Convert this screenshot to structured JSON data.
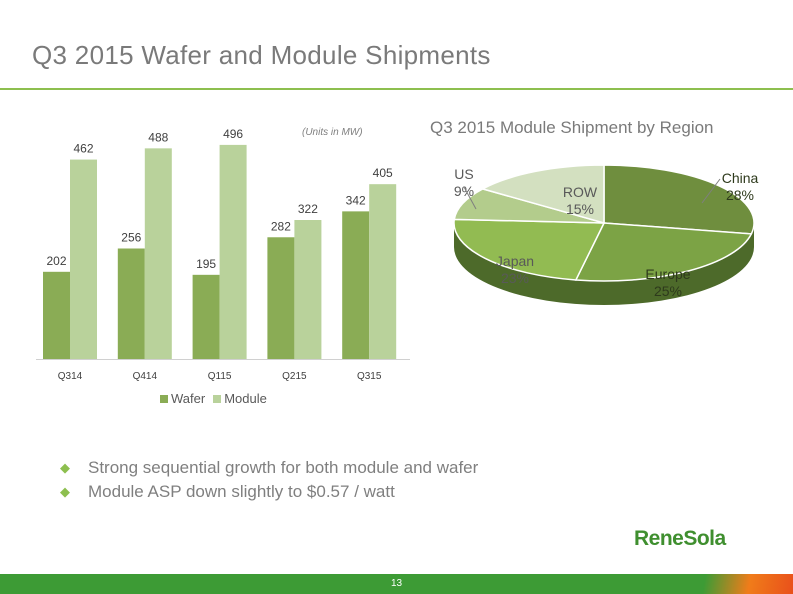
{
  "slide": {
    "title": "Q3 2015 Wafer and Module Shipments",
    "units_note": "(Units in MW)",
    "pie_title": "Q3 2015 Module Shipment by Region",
    "bullets": [
      "Strong sequential growth for both module and wafer",
      "Module ASP down slightly to $0.57 / watt"
    ],
    "bullet_symbol": "◆",
    "logo_text": "ReneSola",
    "page_number": "13"
  },
  "colors": {
    "wafer": "#8aac55",
    "module": "#b9d29b",
    "accent": "#8dbf4f",
    "footer_green": "#3d9b35"
  },
  "chart_data": [
    {
      "type": "bar",
      "categories": [
        "Q314",
        "Q414",
        "Q115",
        "Q215",
        "Q315"
      ],
      "series": [
        {
          "name": "Wafer",
          "values": [
            202,
            256,
            195,
            282,
            342
          ]
        },
        {
          "name": "Module",
          "values": [
            462,
            488,
            496,
            322,
            405
          ]
        }
      ],
      "title": "",
      "xlabel": "",
      "ylabel": "",
      "ylim": [
        0,
        600
      ],
      "grid": false,
      "legend": "bottom"
    },
    {
      "type": "pie",
      "title": "Q3 2015 Module Shipment by Region",
      "slices": [
        {
          "label": "China",
          "value": 28,
          "display": "28%",
          "color": "#6f8e3e"
        },
        {
          "label": "Europe",
          "value": 25,
          "display": "25%",
          "color": "#7ca345"
        },
        {
          "label": "Japan",
          "value": 23,
          "display": "23%",
          "color": "#92bb52"
        },
        {
          "label": "US",
          "value": 9,
          "display": "9%",
          "color": "#b3cc8c"
        },
        {
          "label": "ROW",
          "value": 15,
          "display": "15%",
          "color": "#d3e0c0"
        }
      ],
      "legend": "none"
    }
  ]
}
